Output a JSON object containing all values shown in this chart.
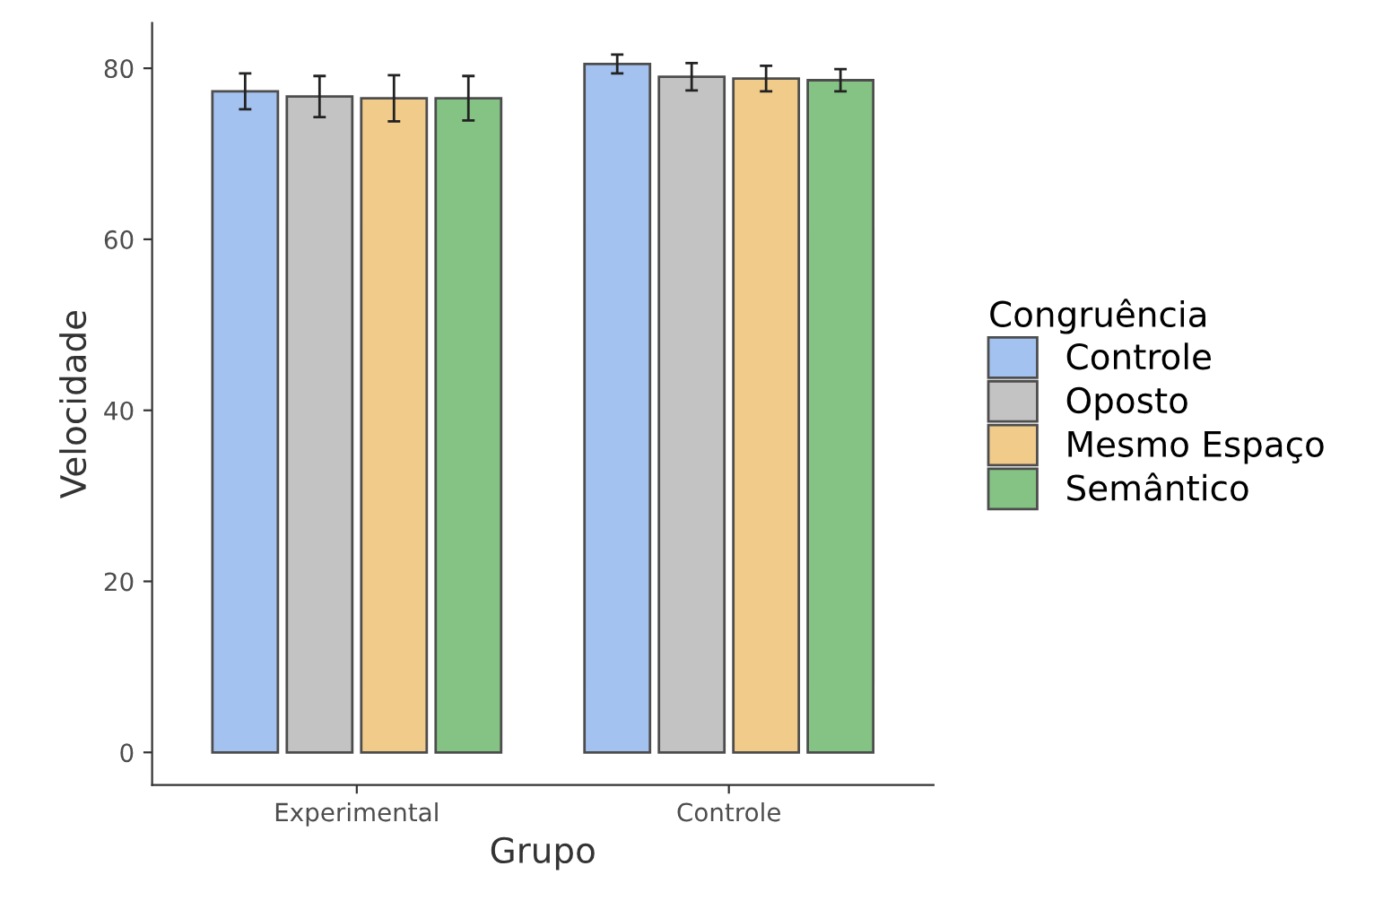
{
  "chart_data": {
    "type": "bar",
    "xlabel": "Grupo",
    "ylabel": "Velocidade",
    "legend_title": "Congruência",
    "categories": [
      "Experimental",
      "Controle"
    ],
    "series": [
      {
        "name": "Controle",
        "color": "#a4c2f0",
        "values": [
          77.3,
          80.5
        ],
        "errors": [
          2.1,
          1.1
        ]
      },
      {
        "name": "Oposto",
        "color": "#c3c3c3",
        "values": [
          76.7,
          79.0
        ],
        "errors": [
          2.4,
          1.6
        ]
      },
      {
        "name": "Mesmo Espaço",
        "color": "#f0cb8a",
        "values": [
          76.5,
          78.8
        ],
        "errors": [
          2.7,
          1.5
        ]
      },
      {
        "name": "Semântico",
        "color": "#84c384",
        "values": [
          76.5,
          78.6
        ],
        "errors": [
          2.6,
          1.3
        ]
      }
    ],
    "ylim": [
      -3.8,
      85.3
    ],
    "yticks": [
      0,
      20,
      40,
      60,
      80
    ],
    "grid": false,
    "legend": "right"
  }
}
